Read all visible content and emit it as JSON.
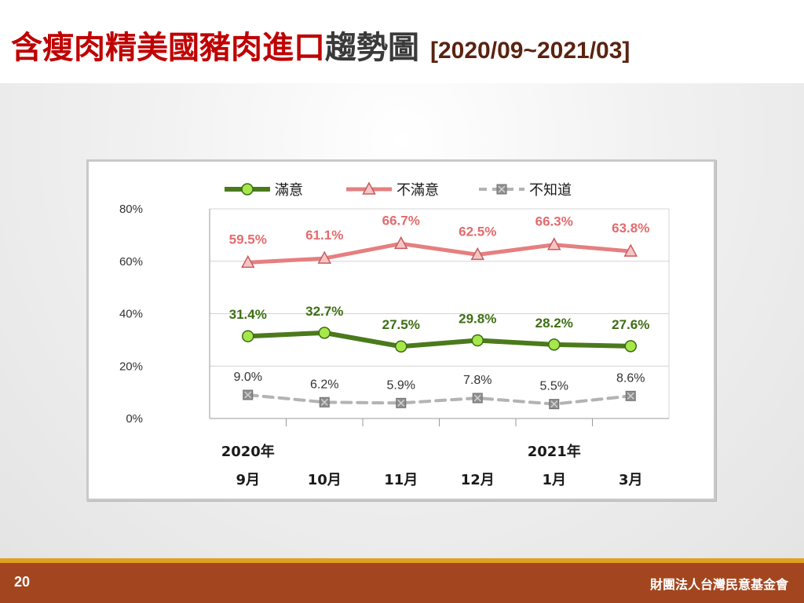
{
  "slide": {
    "title_red": "含瘦肉精美國豬肉進口",
    "title_dark": "趨勢圖",
    "title_range": "[2020/09~2021/03]",
    "page_number": "20",
    "organization": "財團法人台灣民意基金會"
  },
  "colors": {
    "satisfied": "#4a7a1c",
    "satisfied_marker": "#a6e84a",
    "dissatisfied": "#e57f80",
    "dissatisfied_marker": "#f6c6c6",
    "unknown": "#b3b3b3",
    "unknown_marker": "#8f8f8f",
    "label_satisfied": "#3d6e14",
    "label_dissatisfied": "#e36b6d",
    "label_unknown": "#333333",
    "footer": "#a3461f",
    "accent_stripe": "#e0a020"
  },
  "chart_data": {
    "type": "line",
    "categories": [
      "9月",
      "10月",
      "11月",
      "12月",
      "1月",
      "3月"
    ],
    "year_labels": [
      {
        "index": 0,
        "label": "2020年"
      },
      {
        "index": 4,
        "label": "2021年"
      }
    ],
    "yticks": [
      "0%",
      "20%",
      "40%",
      "60%",
      "80%"
    ],
    "ylim": [
      0,
      80
    ],
    "grid": true,
    "legend_position": "top",
    "series": [
      {
        "key": "satisfied",
        "name": "滿意",
        "marker": "circle",
        "line": "solid",
        "values": [
          31.4,
          32.7,
          27.5,
          29.8,
          28.2,
          27.6
        ],
        "labels": [
          "31.4%",
          "32.7%",
          "27.5%",
          "29.8%",
          "28.2%",
          "27.6%"
        ]
      },
      {
        "key": "dissatisfied",
        "name": "不滿意",
        "marker": "triangle",
        "line": "solid",
        "values": [
          59.5,
          61.1,
          66.7,
          62.5,
          66.3,
          63.8
        ],
        "labels": [
          "59.5%",
          "61.1%",
          "66.7%",
          "62.5%",
          "66.3%",
          "63.8%"
        ]
      },
      {
        "key": "unknown",
        "name": "不知道",
        "marker": "square-x",
        "line": "dashed",
        "values": [
          9.0,
          6.2,
          5.9,
          7.8,
          5.5,
          8.6
        ],
        "labels": [
          "9.0%",
          "6.2%",
          "5.9%",
          "7.8%",
          "5.5%",
          "8.6%"
        ]
      }
    ]
  }
}
